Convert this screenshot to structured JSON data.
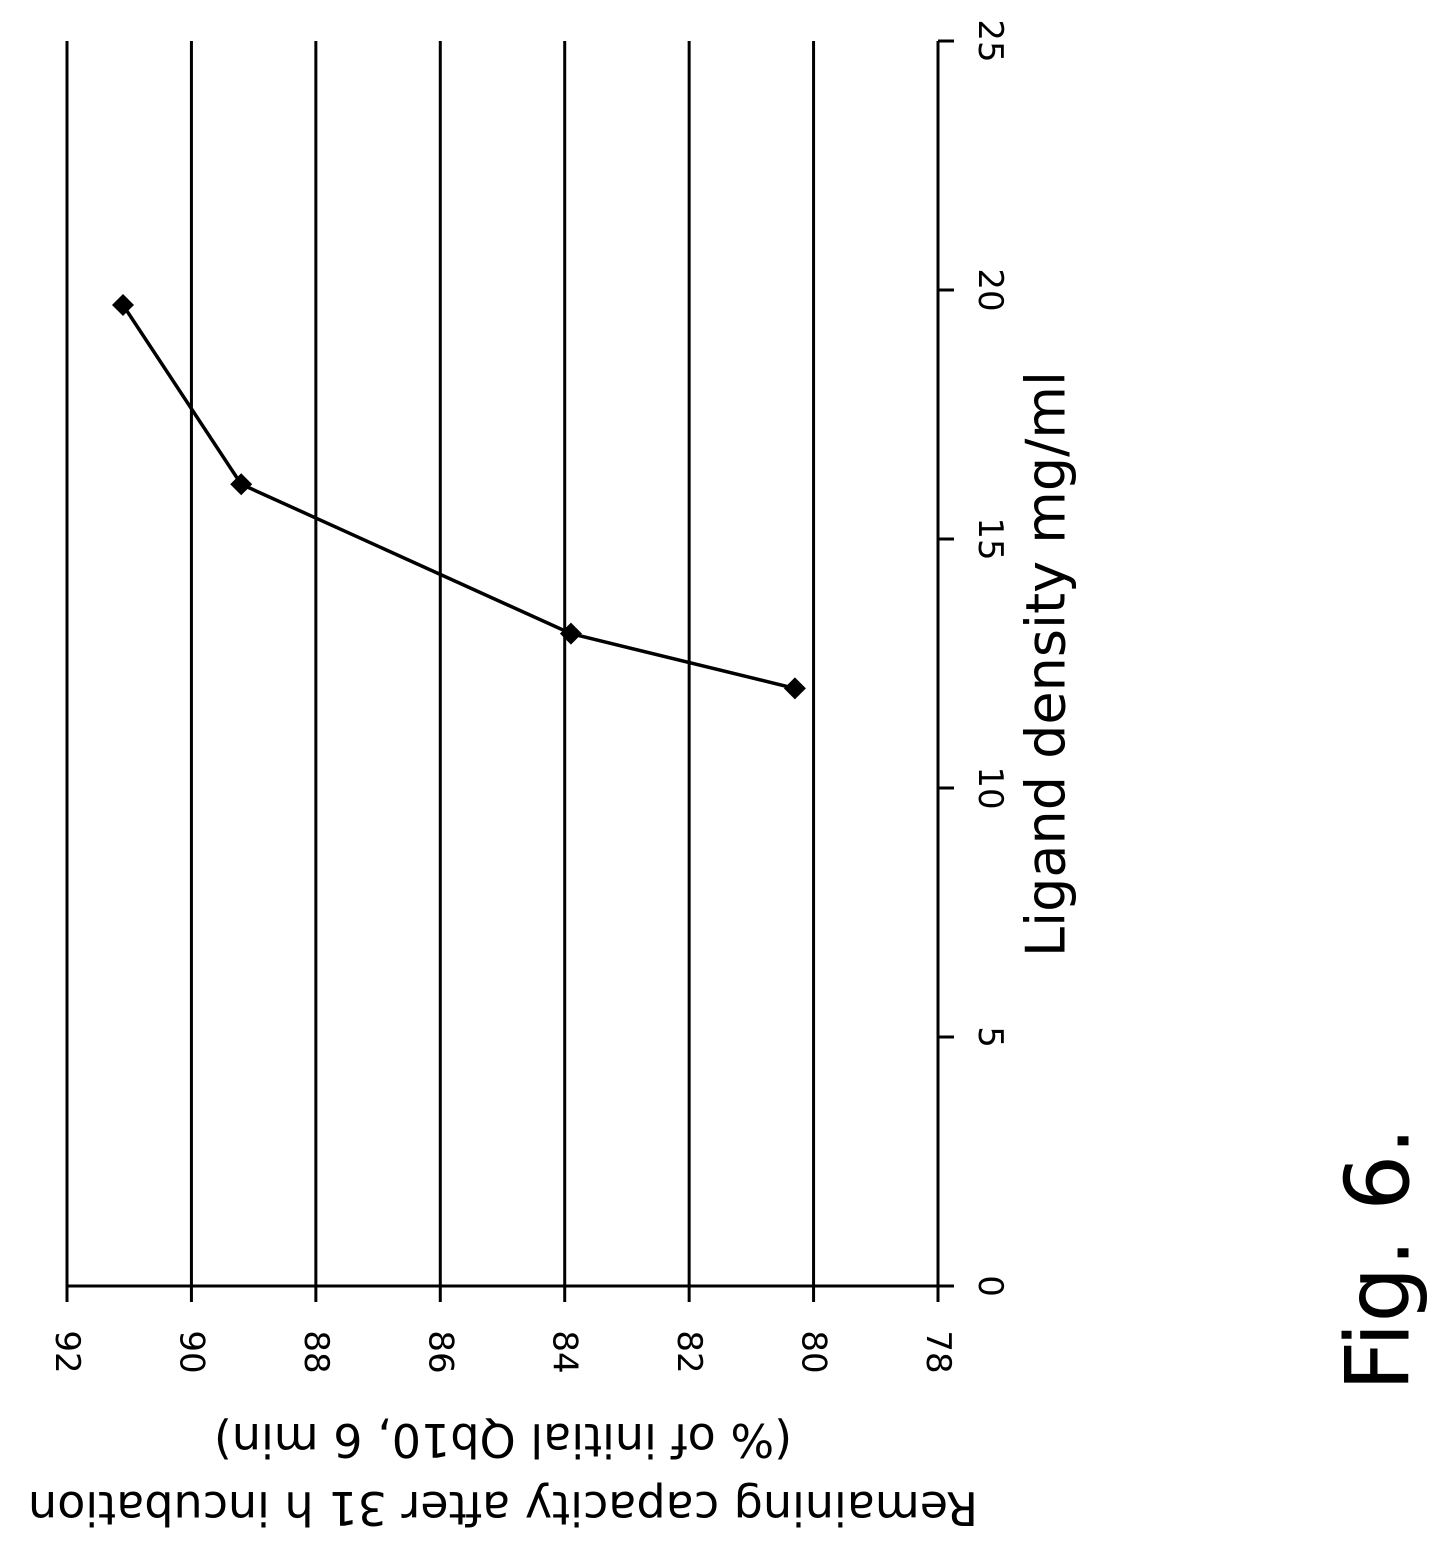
{
  "figure": {
    "label": "Fig. 6."
  },
  "chart_data": {
    "type": "line",
    "xlabel": "Ligand density mg/ml",
    "ylabel_lines": [
      "Remaining capacity after 31 h incubation",
      "(% of initial Qb10, 6 min)"
    ],
    "xlim": [
      0,
      25
    ],
    "ylim": [
      78,
      92
    ],
    "x_ticks": [
      0,
      5,
      10,
      15,
      20,
      25
    ],
    "y_ticks": [
      78,
      80,
      82,
      84,
      86,
      88,
      90,
      92
    ],
    "x_tick_labels": [
      "0",
      "5",
      "10",
      "15",
      "20",
      "25"
    ],
    "y_tick_labels": [
      "78",
      "80",
      "82",
      "84",
      "86",
      "88",
      "90",
      "92"
    ],
    "grid": {
      "y_major": true,
      "x_major": false
    },
    "orientation": "rotated 90 degrees clockwise",
    "marker": "diamond",
    "line_color": "#000000",
    "series": [
      {
        "points": [
          {
            "x": 12.0,
            "y": 80.3
          },
          {
            "x": 13.1,
            "y": 83.9
          },
          {
            "x": 16.1,
            "y": 89.2
          },
          {
            "x": 19.7,
            "y": 91.1
          }
        ]
      }
    ]
  }
}
